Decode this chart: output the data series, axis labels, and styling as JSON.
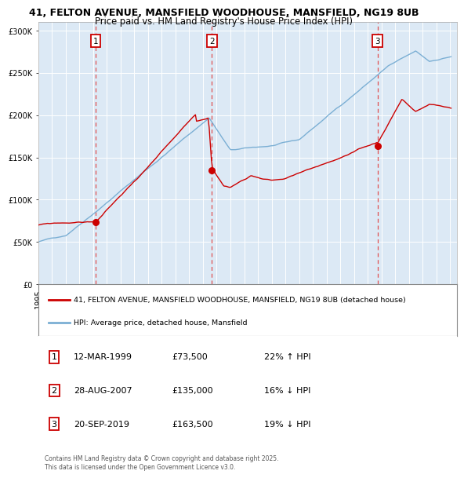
{
  "title_line1": "41, FELTON AVENUE, MANSFIELD WOODHOUSE, MANSFIELD, NG19 8UB",
  "title_line2": "Price paid vs. HM Land Registry's House Price Index (HPI)",
  "ylim": [
    0,
    310000
  ],
  "yticks": [
    0,
    50000,
    100000,
    150000,
    200000,
    250000,
    300000
  ],
  "ytick_labels": [
    "£0",
    "£50K",
    "£100K",
    "£150K",
    "£200K",
    "£250K",
    "£300K"
  ],
  "plot_bg_color": "#dce9f5",
  "hpi_color": "#7bafd4",
  "price_color": "#cc0000",
  "sale1_date": 1999.19,
  "sale1_price": 73500,
  "sale2_date": 2007.65,
  "sale2_price": 135000,
  "sale3_date": 2019.72,
  "sale3_price": 163500,
  "legend_label_price": "41, FELTON AVENUE, MANSFIELD WOODHOUSE, MANSFIELD, NG19 8UB (detached house)",
  "legend_label_hpi": "HPI: Average price, detached house, Mansfield",
  "table_entries": [
    {
      "num": "1",
      "date": "12-MAR-1999",
      "price": "£73,500",
      "hpi": "22% ↑ HPI"
    },
    {
      "num": "2",
      "date": "28-AUG-2007",
      "price": "£135,000",
      "hpi": "16% ↓ HPI"
    },
    {
      "num": "3",
      "date": "20-SEP-2019",
      "price": "£163,500",
      "hpi": "19% ↓ HPI"
    }
  ],
  "footnote": "Contains HM Land Registry data © Crown copyright and database right 2025.\nThis data is licensed under the Open Government Licence v3.0.",
  "grid_color": "#ffffff",
  "dashed_color": "#e05050"
}
